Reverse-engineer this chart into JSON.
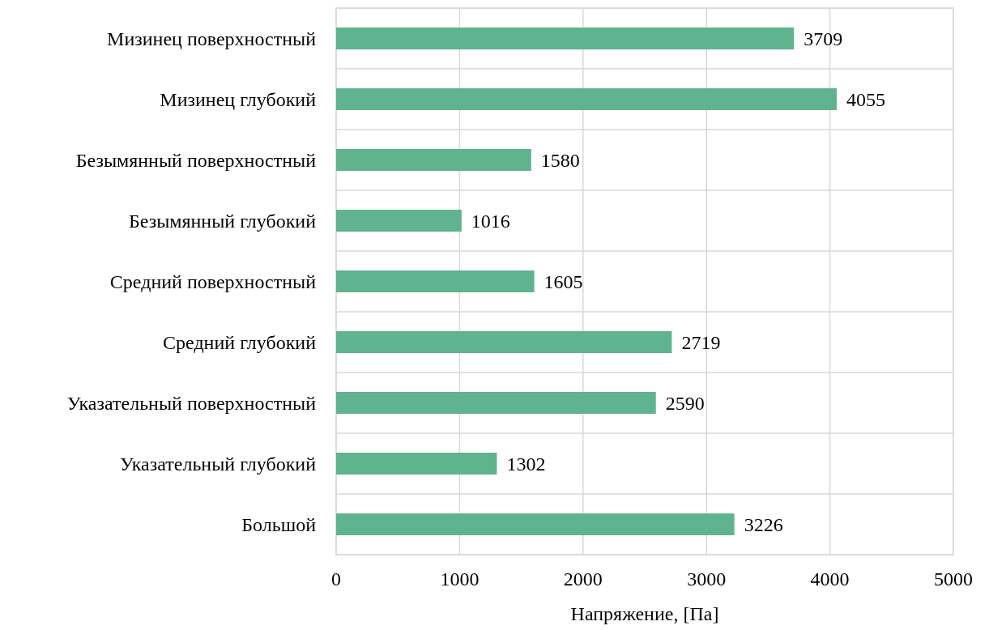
{
  "chart_data": {
    "type": "bar",
    "orientation": "horizontal",
    "xlabel": "Напряжение, [Па]",
    "categories": [
      "Мизинец поверхностный",
      "Мизинец глубокий",
      "Безымянный поверхностный",
      "Безымянный глубокий",
      "Средний поверхностный",
      "Средний глубокий",
      "Указательный поверхностный",
      "Указательный глубокий",
      "Большой"
    ],
    "series": [
      {
        "color": "#5fb38e",
        "values": [
          3709,
          4055,
          1580,
          1016,
          1605,
          2719,
          2590,
          1302,
          3226
        ]
      }
    ],
    "xlim": [
      0,
      5000
    ],
    "xticks": [
      0,
      1000,
      2000,
      3000,
      4000,
      5000
    ],
    "grid": true,
    "data_labels": true
  }
}
